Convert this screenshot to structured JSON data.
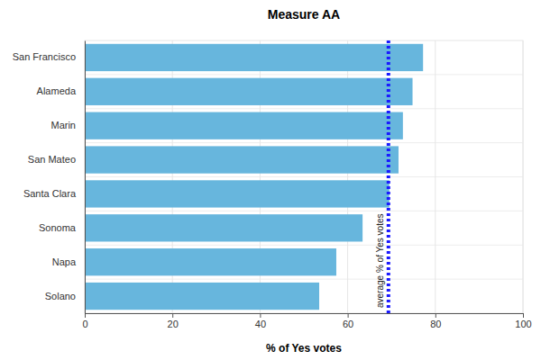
{
  "chart_data": {
    "type": "bar",
    "title": "Measure AA",
    "xlabel": "% of Yes votes",
    "orientation": "horizontal",
    "categories": [
      "San Francisco",
      "Alameda",
      "Marin",
      "San Mateo",
      "Santa Clara",
      "Sonoma",
      "Napa",
      "Solano"
    ],
    "values": [
      77.2,
      74.8,
      72.6,
      71.6,
      69.5,
      63.4,
      57.4,
      53.5
    ],
    "color": "#67b6dd",
    "xlim": [
      0,
      100
    ],
    "xticks": [
      0,
      20,
      40,
      60,
      80,
      100
    ],
    "grid": true,
    "reference_line": {
      "value": 69.3,
      "label": "average % of Yes votes",
      "color": "#1a1aff",
      "line_style": "dotted"
    }
  }
}
